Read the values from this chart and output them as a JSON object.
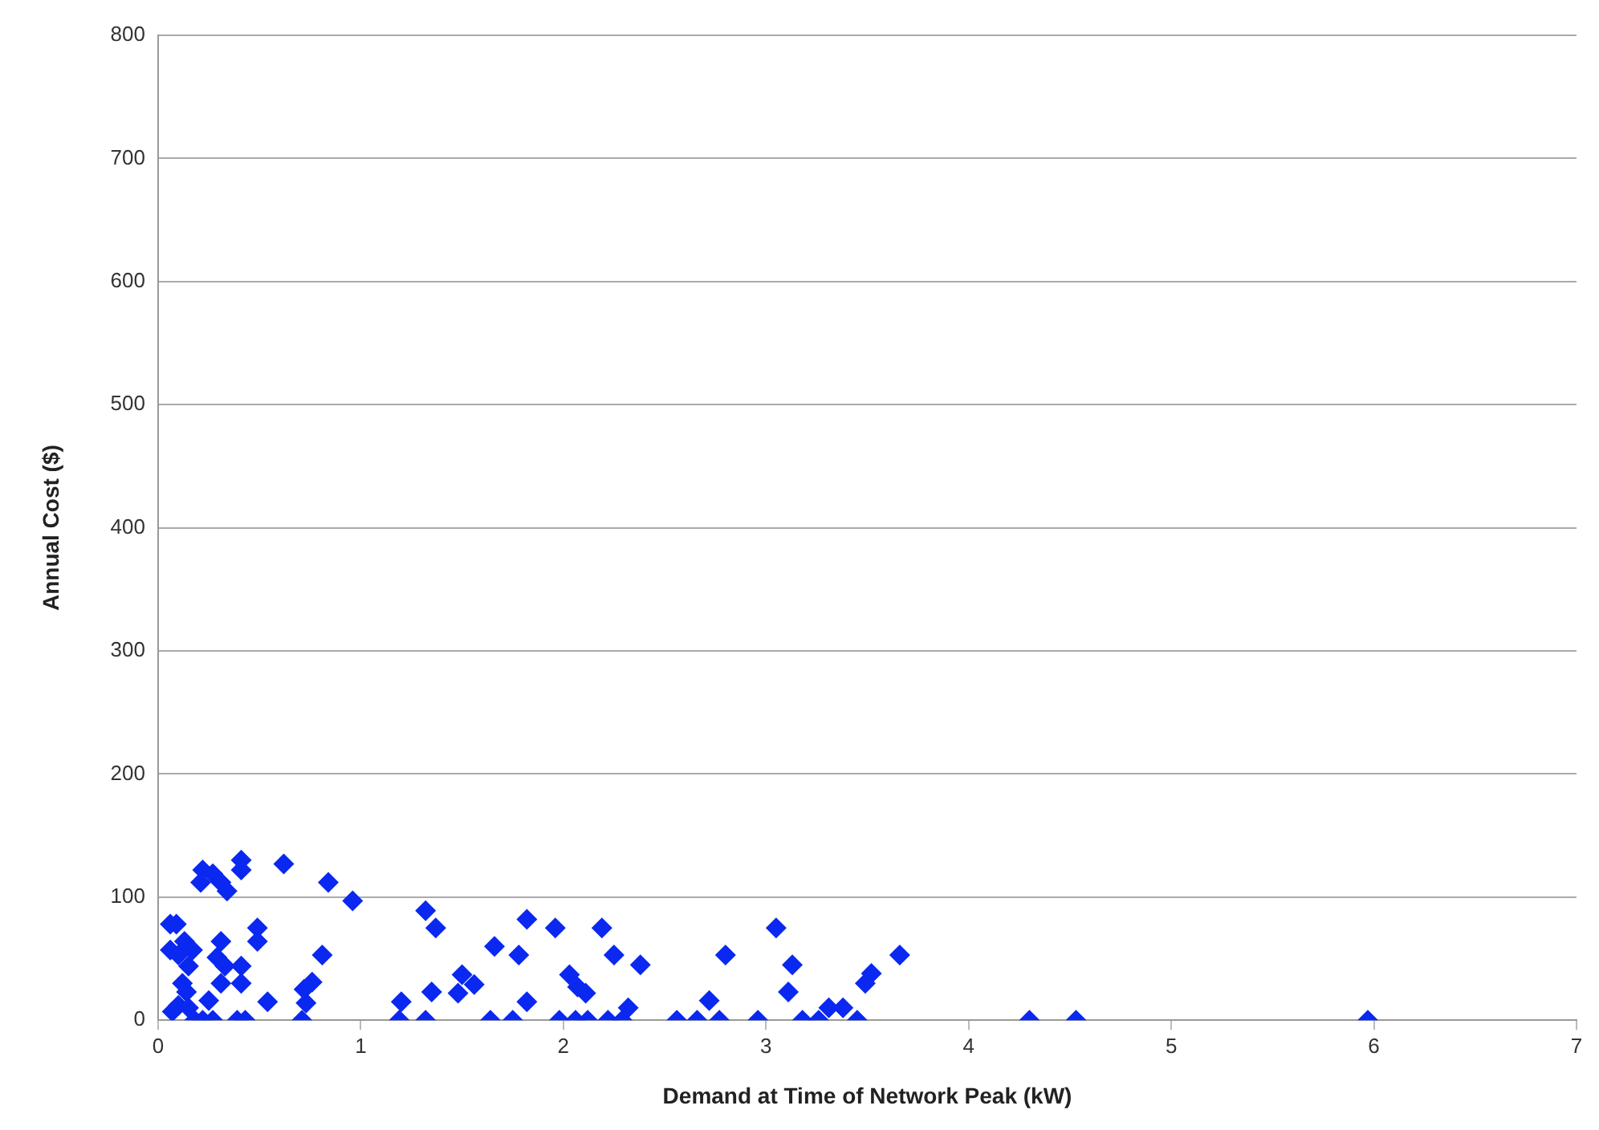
{
  "chart_data": {
    "type": "scatter",
    "xlabel": "Demand at Time of Network Peak (kW)",
    "ylabel": "Annual Cost ($)",
    "xlim": [
      0,
      7
    ],
    "xticks": [
      0,
      1,
      2,
      3,
      4,
      5,
      6,
      7
    ],
    "ylim": [
      0,
      800
    ],
    "yticks": [
      0,
      100,
      200,
      300,
      400,
      500,
      600,
      700,
      800
    ],
    "grid": "y",
    "marker": "diamond",
    "legend": false,
    "series": [
      {
        "color": "#0a28f0",
        "x": [
          0.06,
          0.09,
          0.06,
          0.1,
          0.13,
          0.17,
          0.15,
          0.12,
          0.14,
          0.07,
          0.1,
          0.15,
          0.18,
          0.22,
          0.27,
          0.21,
          0.22,
          0.27,
          0.31,
          0.34,
          0.41,
          0.41,
          0.31,
          0.29,
          0.33,
          0.31,
          0.25,
          0.41,
          0.41,
          0.39,
          0.43,
          0.49,
          0.49,
          0.54,
          0.62,
          0.84,
          0.96,
          0.81,
          0.73,
          0.72,
          0.76,
          0.71,
          1.32,
          1.37,
          1.2,
          1.19,
          1.32,
          1.35,
          1.5,
          1.48,
          1.56,
          1.66,
          1.78,
          1.82,
          1.82,
          1.64,
          1.75,
          1.96,
          1.98,
          2.19,
          2.25,
          2.38,
          2.03,
          2.07,
          2.11,
          2.06,
          2.12,
          2.22,
          2.29,
          2.32,
          2.56,
          2.66,
          2.72,
          2.77,
          2.8,
          2.96,
          3.05,
          3.13,
          3.11,
          3.18,
          3.26,
          3.31,
          3.38,
          3.45,
          3.49,
          3.52,
          3.66,
          4.3,
          4.53,
          5.97
        ],
        "values": [
          78,
          78,
          57,
          53,
          64,
          57,
          44,
          30,
          23,
          7,
          12,
          10,
          0,
          0,
          0,
          112,
          122,
          119,
          112,
          105,
          122,
          130,
          64,
          51,
          44,
          30,
          16,
          44,
          30,
          0,
          0,
          75,
          64,
          15,
          127,
          112,
          97,
          53,
          14,
          25,
          31,
          0,
          89,
          75,
          15,
          0,
          0,
          23,
          37,
          22,
          29,
          60,
          53,
          82,
          15,
          0,
          0,
          75,
          0,
          75,
          53,
          45,
          37,
          27,
          22,
          0,
          0,
          0,
          0,
          10,
          0,
          0,
          16,
          0,
          53,
          0,
          75,
          45,
          23,
          0,
          0,
          10,
          10,
          0,
          30,
          38,
          53,
          0,
          0,
          0
        ]
      }
    ]
  }
}
